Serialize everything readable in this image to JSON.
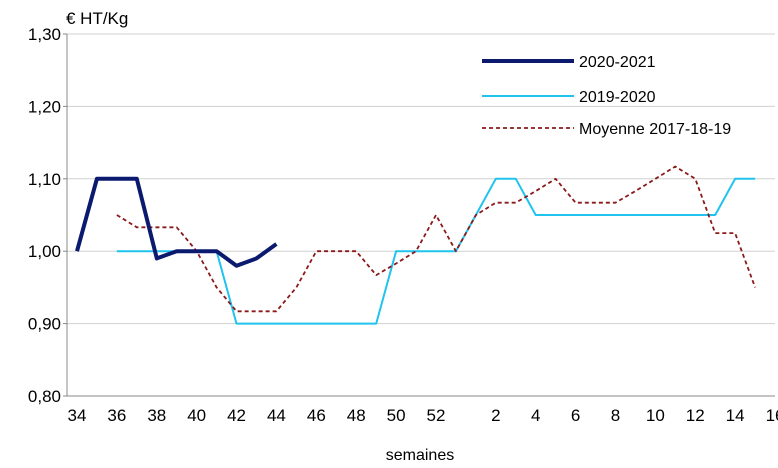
{
  "chart_data": {
    "type": "line",
    "ylabel": "€ HT/Kg",
    "xlabel": "semaines",
    "ylim": [
      0.8,
      1.3
    ],
    "y_ticks": [
      "0,80",
      "0,90",
      "1,00",
      "1,10",
      "1,20",
      "1,30"
    ],
    "y_tick_values": [
      0.8,
      0.9,
      1.0,
      1.1,
      1.2,
      1.3
    ],
    "weeks": [
      34,
      35,
      36,
      37,
      38,
      39,
      40,
      41,
      42,
      43,
      44,
      45,
      46,
      47,
      48,
      49,
      50,
      51,
      52,
      53,
      1,
      2,
      3,
      4,
      5,
      6,
      7,
      8,
      9,
      10,
      11,
      12,
      13,
      14,
      15,
      16
    ],
    "x_tick_labels": [
      "34",
      "36",
      "38",
      "40",
      "42",
      "44",
      "46",
      "48",
      "50",
      "52",
      "2",
      "4",
      "6",
      "8",
      "10",
      "12",
      "14",
      "16"
    ],
    "grid": "horizontal",
    "legend_position": "top-right",
    "series": [
      {
        "name": "2020-2021",
        "color": "#0b1a6e",
        "style": "solid-thick",
        "values": [
          1.0,
          1.1,
          1.1,
          1.1,
          0.99,
          1.0,
          1.0,
          1.0,
          0.98,
          0.99,
          1.01,
          null,
          null,
          null,
          null,
          null,
          null,
          null,
          null,
          null,
          null,
          null,
          null,
          null,
          null,
          null,
          null,
          null,
          null,
          null,
          null,
          null,
          null,
          null,
          null,
          null
        ]
      },
      {
        "name": "2019-2020",
        "color": "#1fc3ee",
        "style": "solid",
        "values": [
          null,
          null,
          1.0,
          1.0,
          1.0,
          1.0,
          1.0,
          1.0,
          0.9,
          0.9,
          0.9,
          0.9,
          0.9,
          0.9,
          0.9,
          0.9,
          1.0,
          1.0,
          1.0,
          1.0,
          1.05,
          1.1,
          1.1,
          1.05,
          1.05,
          1.05,
          1.05,
          1.05,
          1.05,
          1.05,
          1.05,
          1.05,
          1.05,
          1.1,
          1.1,
          null
        ]
      },
      {
        "name": "Moyenne 2017-18-19",
        "color": "#8b1a1a",
        "style": "dashed",
        "values": [
          null,
          null,
          1.05,
          1.033,
          1.033,
          1.033,
          1.0,
          0.95,
          0.917,
          0.917,
          0.917,
          0.95,
          1.0,
          1.0,
          1.0,
          0.967,
          0.983,
          1.0,
          1.05,
          1.0,
          1.05,
          1.067,
          1.067,
          1.083,
          1.1,
          1.067,
          1.067,
          1.067,
          1.083,
          1.1,
          1.117,
          1.1,
          1.025,
          1.025,
          0.95,
          null
        ]
      }
    ]
  }
}
